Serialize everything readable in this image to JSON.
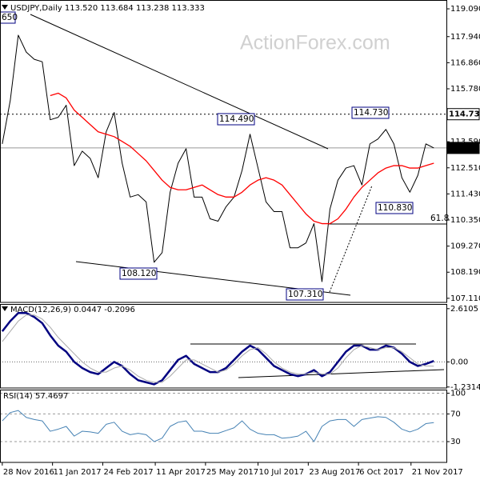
{
  "chart_data": [
    {
      "type": "line",
      "title": "USDJPY,Daily 113.520 113.684 113.238 113.333",
      "watermark": "ActionForex.com",
      "x": [
        "2016-11-28",
        "2016-12-05",
        "2016-12-12",
        "2016-12-19",
        "2016-12-26",
        "2017-01-02",
        "2017-01-09",
        "2017-01-16",
        "2017-01-23",
        "2017-01-30",
        "2017-02-06",
        "2017-02-13",
        "2017-02-20",
        "2017-02-27",
        "2017-03-06",
        "2017-03-13",
        "2017-03-20",
        "2017-03-27",
        "2017-04-03",
        "2017-04-10",
        "2017-04-17",
        "2017-04-24",
        "2017-05-01",
        "2017-05-08",
        "2017-05-15",
        "2017-05-22",
        "2017-05-29",
        "2017-06-05",
        "2017-06-12",
        "2017-06-19",
        "2017-06-26",
        "2017-07-03",
        "2017-07-10",
        "2017-07-17",
        "2017-07-24",
        "2017-07-31",
        "2017-08-07",
        "2017-08-14",
        "2017-08-21",
        "2017-08-28",
        "2017-09-04",
        "2017-09-11",
        "2017-09-18",
        "2017-09-25",
        "2017-10-02",
        "2017-10-09",
        "2017-10-16",
        "2017-10-23",
        "2017-10-30",
        "2017-11-06",
        "2017-11-13",
        "2017-11-20",
        "2017-11-27",
        "2017-12-04",
        "2017-12-11"
      ],
      "xlim": [
        "2016-11-26",
        "2017-12-22"
      ],
      "ylim": [
        106.94,
        119.29
      ],
      "yticks": [
        {
          "value": 119.09,
          "label": "119.090"
        },
        {
          "value": 117.94,
          "label": "117.940"
        },
        {
          "value": 116.86,
          "label": "116.860"
        },
        {
          "value": 115.78,
          "label": "115.780"
        },
        {
          "value": 113.59,
          "label": "113.590"
        },
        {
          "value": 112.51,
          "label": "112.510"
        },
        {
          "value": 111.43,
          "label": "111.430"
        },
        {
          "value": 110.35,
          "label": "110.350"
        },
        {
          "value": 109.27,
          "label": "109.270"
        },
        {
          "value": 108.19,
          "label": "108.190"
        },
        {
          "value": 107.11,
          "label": "107.110"
        }
      ],
      "highlights": [
        {
          "value": 114.73,
          "label": "114.730"
        },
        {
          "value": 113.333,
          "label": "113.333"
        }
      ],
      "annotations": [
        "650",
        "114.490",
        "108.120",
        "107.310",
        "114.730",
        "110.830",
        "61.8"
      ],
      "series": [
        {
          "color": "#000000",
          "values": [
            113.5,
            115.3,
            118.0,
            117.3,
            117.0,
            116.9,
            114.5,
            114.6,
            115.1,
            112.6,
            113.2,
            112.9,
            112.1,
            114.0,
            114.8,
            112.7,
            111.3,
            111.4,
            111.1,
            108.6,
            109.0,
            111.5,
            112.7,
            113.3,
            111.3,
            111.3,
            110.4,
            110.3,
            110.9,
            111.3,
            112.4,
            113.9,
            112.5,
            111.1,
            110.7,
            110.7,
            109.2,
            109.2,
            109.4,
            110.2,
            107.8,
            110.8,
            112.0,
            112.5,
            112.6,
            111.8,
            113.5,
            113.7,
            114.1,
            113.5,
            112.1,
            111.5,
            112.2,
            113.5,
            113.333
          ]
        },
        {
          "color": "#ff0000",
          "values": [
            null,
            null,
            null,
            null,
            null,
            null,
            115.5,
            115.6,
            115.4,
            114.9,
            114.6,
            114.3,
            114.0,
            113.9,
            113.8,
            113.6,
            113.4,
            113.1,
            112.8,
            112.4,
            112.0,
            111.7,
            111.6,
            111.6,
            111.7,
            111.8,
            111.6,
            111.4,
            111.3,
            111.3,
            111.5,
            111.8,
            112.0,
            112.1,
            112.0,
            111.8,
            111.4,
            111.0,
            110.6,
            110.3,
            110.2,
            110.2,
            110.4,
            110.8,
            111.3,
            111.7,
            112.0,
            112.3,
            112.5,
            112.6,
            112.6,
            112.5,
            112.5,
            112.6,
            112.7
          ]
        }
      ]
    },
    {
      "type": "line",
      "title": "MACD(12,26,9) 0.0447 -0.2096",
      "x": [
        "2016-11-28",
        "2016-12-05",
        "2016-12-12",
        "2016-12-19",
        "2016-12-26",
        "2017-01-02",
        "2017-01-09",
        "2017-01-16",
        "2017-01-23",
        "2017-01-30",
        "2017-02-06",
        "2017-02-13",
        "2017-02-20",
        "2017-02-27",
        "2017-03-06",
        "2017-03-13",
        "2017-03-20",
        "2017-03-27",
        "2017-04-03",
        "2017-04-10",
        "2017-04-17",
        "2017-04-24",
        "2017-05-01",
        "2017-05-08",
        "2017-05-15",
        "2017-05-22",
        "2017-05-29",
        "2017-06-05",
        "2017-06-12",
        "2017-06-19",
        "2017-06-26",
        "2017-07-03",
        "2017-07-10",
        "2017-07-17",
        "2017-07-24",
        "2017-07-31",
        "2017-08-07",
        "2017-08-14",
        "2017-08-21",
        "2017-08-28",
        "2017-09-04",
        "2017-09-11",
        "2017-09-18",
        "2017-09-25",
        "2017-10-02",
        "2017-10-09",
        "2017-10-16",
        "2017-10-23",
        "2017-10-30",
        "2017-11-06",
        "2017-11-13",
        "2017-11-20",
        "2017-11-27",
        "2017-12-04",
        "2017-12-11"
      ],
      "xlim": [
        "2016-11-26",
        "2017-12-22"
      ],
      "ylim": [
        -1.28,
        2.8
      ],
      "yticks": [
        2.6105,
        {
          "value": 0,
          "label": "0.00"
        },
        -1.2314
      ],
      "series": [
        {
          "color": "#000080",
          "values": [
            1.5,
            2.0,
            2.4,
            2.4,
            2.2,
            1.9,
            1.3,
            0.8,
            0.5,
            0.0,
            -0.3,
            -0.5,
            -0.6,
            -0.3,
            0.0,
            -0.2,
            -0.6,
            -0.9,
            -1.0,
            -1.1,
            -0.9,
            -0.4,
            0.1,
            0.3,
            -0.1,
            -0.3,
            -0.5,
            -0.5,
            -0.3,
            0.1,
            0.5,
            0.8,
            0.6,
            0.2,
            -0.2,
            -0.4,
            -0.6,
            -0.7,
            -0.6,
            -0.4,
            -0.7,
            -0.5,
            0.0,
            0.5,
            0.8,
            0.8,
            0.6,
            0.6,
            0.8,
            0.7,
            0.4,
            0.0,
            -0.2,
            -0.1,
            0.0447
          ]
        },
        {
          "color": "#a9a9a9",
          "values": [
            1.0,
            1.5,
            2.0,
            2.3,
            2.3,
            2.1,
            1.7,
            1.2,
            0.8,
            0.4,
            0.0,
            -0.3,
            -0.5,
            -0.5,
            -0.3,
            -0.2,
            -0.4,
            -0.7,
            -0.9,
            -1.0,
            -1.0,
            -0.7,
            -0.3,
            0.1,
            0.1,
            -0.1,
            -0.3,
            -0.5,
            -0.4,
            -0.1,
            0.3,
            0.6,
            0.7,
            0.4,
            0.0,
            -0.3,
            -0.5,
            -0.6,
            -0.6,
            -0.5,
            -0.6,
            -0.6,
            -0.3,
            0.2,
            0.6,
            0.8,
            0.7,
            0.6,
            0.7,
            0.7,
            0.5,
            0.2,
            -0.1,
            -0.2,
            -0.2096
          ]
        }
      ]
    },
    {
      "type": "line",
      "title": "RSI(14) 57.4697",
      "x": [
        "2016-11-28",
        "2016-12-05",
        "2016-12-12",
        "2016-12-19",
        "2016-12-26",
        "2017-01-02",
        "2017-01-09",
        "2017-01-16",
        "2017-01-23",
        "2017-01-30",
        "2017-02-06",
        "2017-02-13",
        "2017-02-20",
        "2017-02-27",
        "2017-03-06",
        "2017-03-13",
        "2017-03-20",
        "2017-03-27",
        "2017-04-03",
        "2017-04-10",
        "2017-04-17",
        "2017-04-24",
        "2017-05-01",
        "2017-05-08",
        "2017-05-15",
        "2017-05-22",
        "2017-05-29",
        "2017-06-05",
        "2017-06-12",
        "2017-06-19",
        "2017-06-26",
        "2017-07-03",
        "2017-07-10",
        "2017-07-17",
        "2017-07-24",
        "2017-07-31",
        "2017-08-07",
        "2017-08-14",
        "2017-08-21",
        "2017-08-28",
        "2017-09-04",
        "2017-09-11",
        "2017-09-18",
        "2017-09-25",
        "2017-10-02",
        "2017-10-09",
        "2017-10-16",
        "2017-10-23",
        "2017-10-30",
        "2017-11-06",
        "2017-11-13",
        "2017-11-20",
        "2017-11-27",
        "2017-12-04",
        "2017-12-11"
      ],
      "xlim": [
        "2016-11-26",
        "2017-12-22"
      ],
      "ylim": [
        0,
        104
      ],
      "yticks": [
        100,
        70,
        30
      ],
      "grid": true,
      "xticks": [
        {
          "value": "2016-11-28",
          "label": "28 Nov 2016"
        },
        {
          "value": "2017-01-11",
          "label": "11 Jan 2017"
        },
        {
          "value": "2017-02-24",
          "label": "24 Feb 2017"
        },
        {
          "value": "2017-04-11",
          "label": "11 Apr 2017"
        },
        {
          "value": "2017-05-25",
          "label": "25 May 2017"
        },
        {
          "value": "2017-07-10",
          "label": "10 Jul 2017"
        },
        {
          "value": "2017-08-23",
          "label": "23 Aug 2017"
        },
        {
          "value": "2017-10-06",
          "label": "6 Oct 2017"
        },
        {
          "value": "2017-11-21",
          "label": "21 Nov 2017"
        }
      ],
      "series": [
        {
          "color": "#4682b4",
          "values": [
            60,
            72,
            75,
            65,
            62,
            60,
            45,
            48,
            52,
            38,
            45,
            44,
            42,
            55,
            58,
            45,
            40,
            42,
            40,
            30,
            35,
            52,
            58,
            60,
            45,
            45,
            42,
            42,
            46,
            50,
            60,
            48,
            42,
            40,
            40,
            35,
            36,
            38,
            45,
            30,
            52,
            60,
            62,
            62,
            52,
            62,
            64,
            66,
            65,
            58,
            48,
            44,
            48,
            56,
            57.4697
          ]
        }
      ]
    }
  ]
}
